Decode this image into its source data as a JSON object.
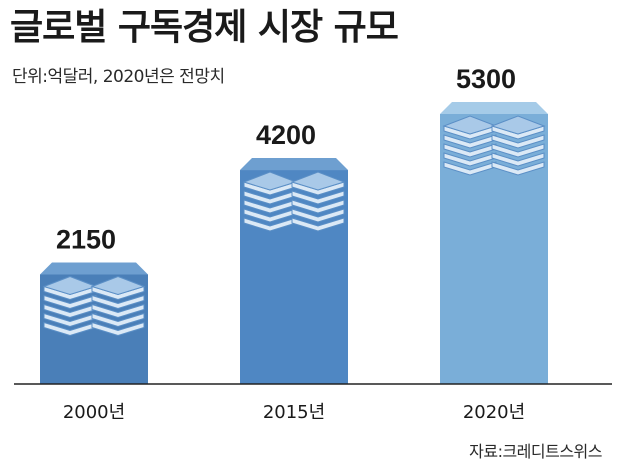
{
  "header": {
    "title": "글로벌 구독경제 시장 규모",
    "unit_note": "단위:억달러, 2020년은 전망치"
  },
  "footer": {
    "source": "자료:크레디트스위스"
  },
  "colors": {
    "bar_front": [
      "#4a7fb8",
      "#4f87c3",
      "#7aaed8"
    ],
    "bar_top": [
      "#6e9fd0",
      "#6e9fd0",
      "#a5cbe8"
    ],
    "stack_light": "#dbe9f6",
    "stack_mid": "#a9c9e8",
    "baseline": "#222222"
  },
  "chart_data": {
    "type": "bar",
    "categories": [
      "2000년",
      "2015년",
      "2020년"
    ],
    "values": [
      2150,
      4200,
      5300
    ],
    "value_labels": [
      "2150",
      "4200",
      "5300"
    ],
    "title": "글로벌 구독경제 시장 규모",
    "xlabel": "",
    "ylabel": "",
    "ylim": [
      0,
      5300
    ],
    "grid": false,
    "legend": "none"
  }
}
